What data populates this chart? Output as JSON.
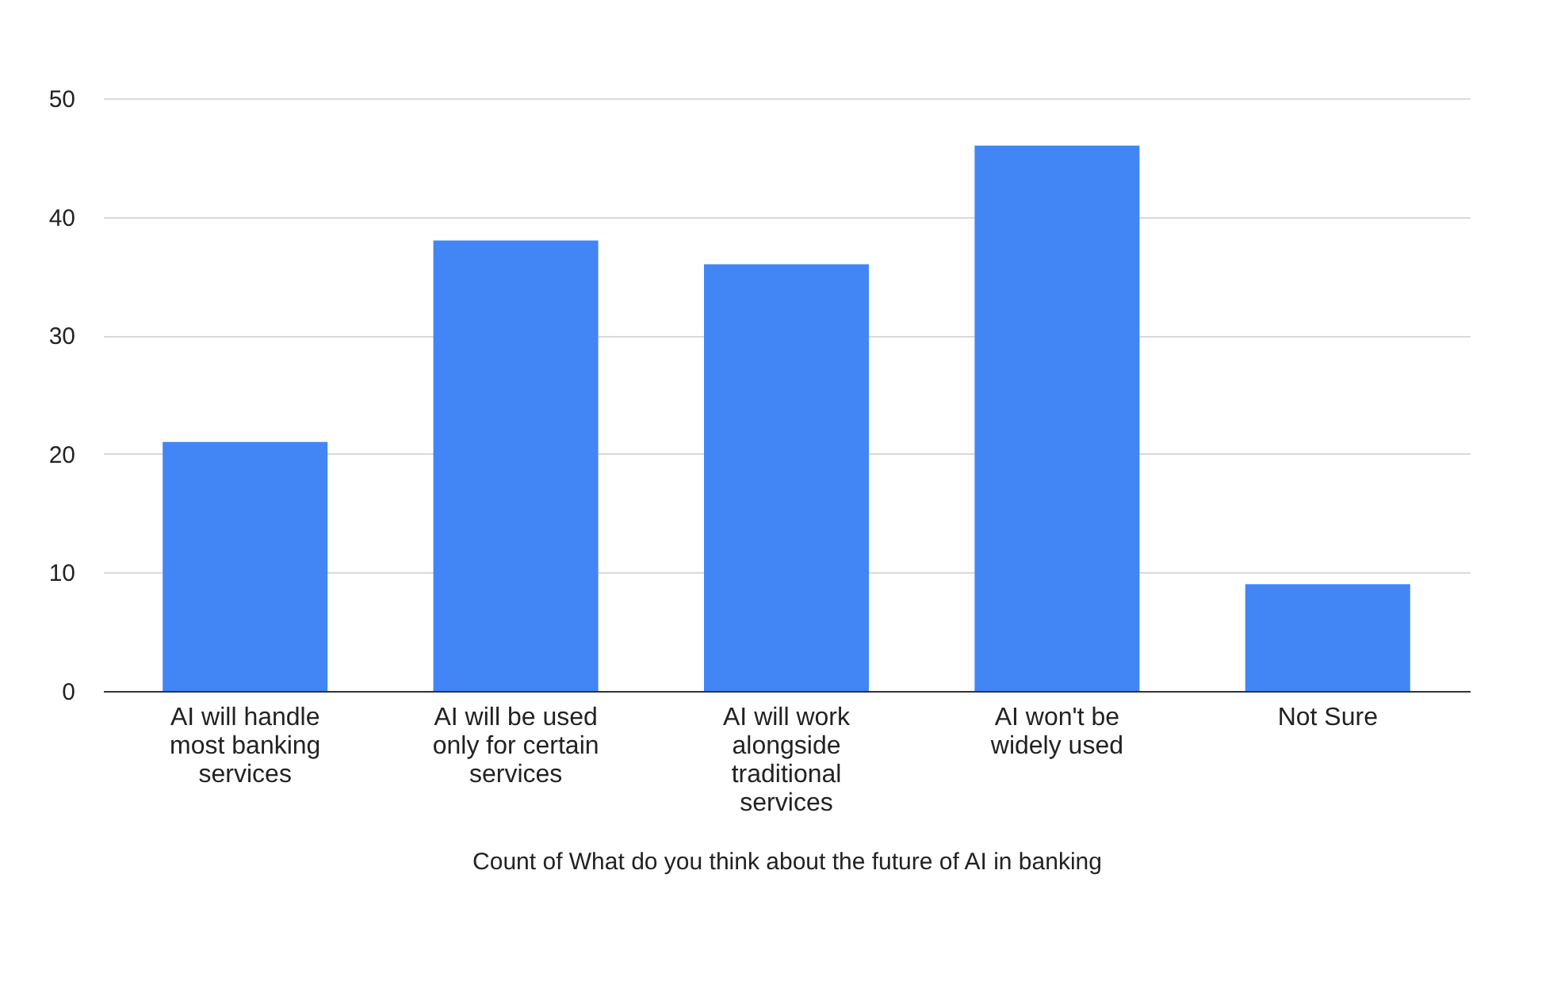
{
  "chart_data": {
    "type": "bar",
    "xlabel": "Count of What do you think about the future of AI in banking",
    "categories": [
      "AI will handle most banking services",
      "AI will be used only for certain services",
      "AI will work alongside traditional services",
      "AI won't be widely used",
      "Not Sure"
    ],
    "values": [
      21,
      38,
      36,
      46,
      9
    ],
    "color": "#4285f4",
    "ylim": [
      0,
      50
    ],
    "yticks": [
      0,
      10,
      20,
      30,
      40,
      50
    ],
    "grid": "y"
  }
}
